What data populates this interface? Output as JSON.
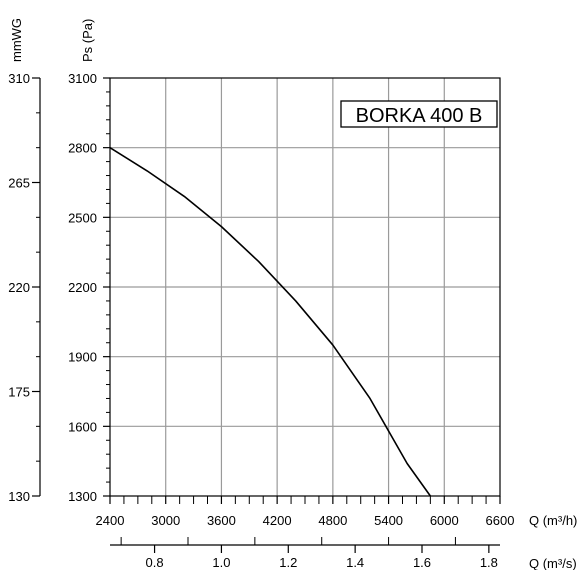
{
  "chart_data": {
    "type": "line",
    "title": "BORKA 400 B",
    "x_primary": {
      "label": "Q (m³/h)",
      "range": [
        2400,
        6600
      ],
      "ticks": [
        2400,
        3000,
        3600,
        4200,
        4800,
        5400,
        6000,
        6600
      ],
      "tick_labels": [
        "2400",
        "3000",
        "3600",
        "4200",
        "4800",
        "5400",
        "6000",
        "6600"
      ]
    },
    "x_secondary": {
      "label": "Q (m³/s)",
      "ticks": [
        0.8,
        1.0,
        1.2,
        1.4,
        1.6,
        1.8
      ],
      "tick_labels": [
        "0.8",
        "1.0",
        "1.2",
        "1.4",
        "1.6",
        "1.8"
      ]
    },
    "y_primary": {
      "label": "Ps (Pa)",
      "range": [
        1300,
        3100
      ],
      "ticks": [
        1300,
        1600,
        1900,
        2200,
        2500,
        2800,
        3100
      ],
      "tick_labels": [
        "1300",
        "1600",
        "1900",
        "2200",
        "2500",
        "2800",
        "3100"
      ]
    },
    "y_secondary": {
      "label": "mmWG",
      "ticks": [
        130,
        175,
        220,
        265,
        310
      ],
      "tick_labels": [
        "130",
        "175",
        "220",
        "265",
        "310"
      ]
    },
    "grid": true,
    "series": [
      {
        "x": [
          2400,
          2800,
          3200,
          3600,
          4000,
          4400,
          4800,
          5200,
          5600,
          5850
        ],
        "y": [
          2800,
          2700,
          2590,
          2460,
          2310,
          2140,
          1950,
          1720,
          1440,
          1300
        ]
      }
    ]
  }
}
